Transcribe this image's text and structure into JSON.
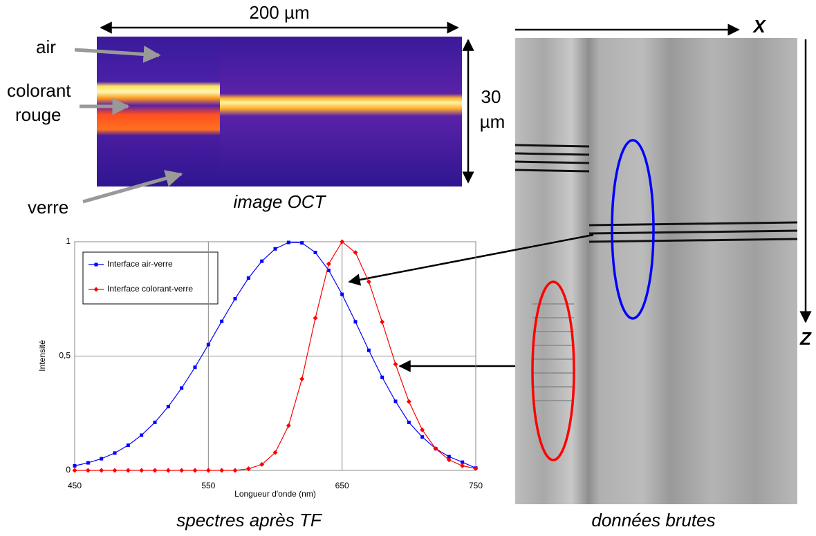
{
  "figure": {
    "oct_width": "200 µm",
    "oct_height_1": "30",
    "oct_height_2": "µm",
    "label_air": "air",
    "label_dye_1": "colorant",
    "label_dye_2": "rouge",
    "label_glass": "verre",
    "oct_caption": "image OCT",
    "spectra_caption": "spectres après TF",
    "raw_caption": "données brutes",
    "axis_x": "X",
    "axis_z": "Z"
  },
  "chart_data": {
    "type": "line",
    "x_label": "Longueur d'onde (nm)",
    "y_label": "Intensité",
    "x": [
      450,
      460,
      470,
      480,
      490,
      500,
      510,
      520,
      530,
      540,
      550,
      560,
      570,
      580,
      590,
      600,
      610,
      620,
      630,
      640,
      650,
      660,
      670,
      680,
      690,
      700,
      710,
      720,
      730,
      740,
      750
    ],
    "series": [
      {
        "name": "Interface air-verre",
        "color": "#0000ff",
        "marker": "square",
        "values": [
          0.02,
          0.033,
          0.051,
          0.076,
          0.11,
          0.154,
          0.21,
          0.279,
          0.36,
          0.451,
          0.55,
          0.652,
          0.751,
          0.841,
          0.915,
          0.969,
          0.997,
          0.995,
          0.953,
          0.875,
          0.77,
          0.65,
          0.525,
          0.407,
          0.302,
          0.21,
          0.146,
          0.095,
          0.06,
          0.036,
          0.01
        ]
      },
      {
        "name": "Interface colorant-verre",
        "color": "#ff0000",
        "marker": "diamond",
        "values": [
          0,
          0,
          0,
          0,
          0,
          0,
          0,
          0,
          0,
          0,
          0,
          0,
          0,
          0.007,
          0.026,
          0.078,
          0.196,
          0.4,
          0.666,
          0.903,
          1,
          0.953,
          0.825,
          0.649,
          0.464,
          0.301,
          0.177,
          0.095,
          0.046,
          0.02,
          0.008
        ]
      }
    ],
    "xlim": [
      450,
      750
    ],
    "xticks": [
      450,
      550,
      650,
      750
    ],
    "ylim": [
      0,
      1
    ],
    "yticks": [
      0,
      {
        "value": 0.5,
        "label": "0,5"
      },
      1
    ],
    "grid": true,
    "legend": "upper left"
  }
}
